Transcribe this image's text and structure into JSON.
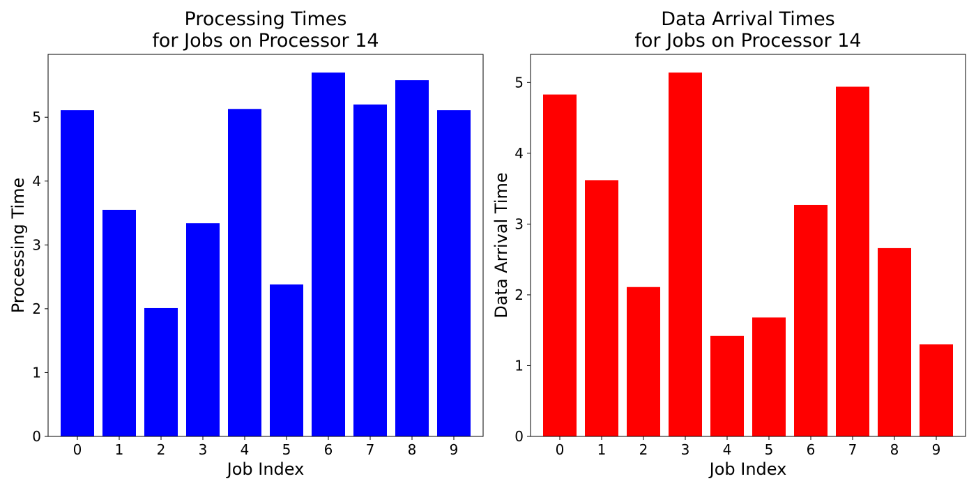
{
  "chart_data": [
    {
      "type": "bar",
      "title": [
        "Processing Times",
        "for Jobs on Processor 14"
      ],
      "xlabel": "Job Index",
      "ylabel": "Processing Time",
      "categories": [
        "0",
        "1",
        "2",
        "3",
        "4",
        "5",
        "6",
        "7",
        "8",
        "9"
      ],
      "values": [
        5.11,
        3.55,
        2.01,
        3.34,
        5.13,
        2.38,
        5.7,
        5.2,
        5.58,
        5.11
      ],
      "ylim": [
        0,
        5.985
      ],
      "yticks": [
        "0",
        "1",
        "2",
        "3",
        "4",
        "5"
      ],
      "color": "#0000ff",
      "grid": false
    },
    {
      "type": "bar",
      "title": [
        "Data Arrival Times",
        "for Jobs on Processor 14"
      ],
      "xlabel": "Job Index",
      "ylabel": "Data Arrival Time",
      "categories": [
        "0",
        "1",
        "2",
        "3",
        "4",
        "5",
        "6",
        "7",
        "8",
        "9"
      ],
      "values": [
        4.83,
        3.62,
        2.11,
        5.14,
        1.42,
        1.68,
        3.27,
        4.94,
        2.66,
        1.3
      ],
      "ylim": [
        0,
        5.397
      ],
      "yticks": [
        "0",
        "1",
        "2",
        "3",
        "4",
        "5"
      ],
      "color": "#ff0000",
      "grid": false
    }
  ]
}
